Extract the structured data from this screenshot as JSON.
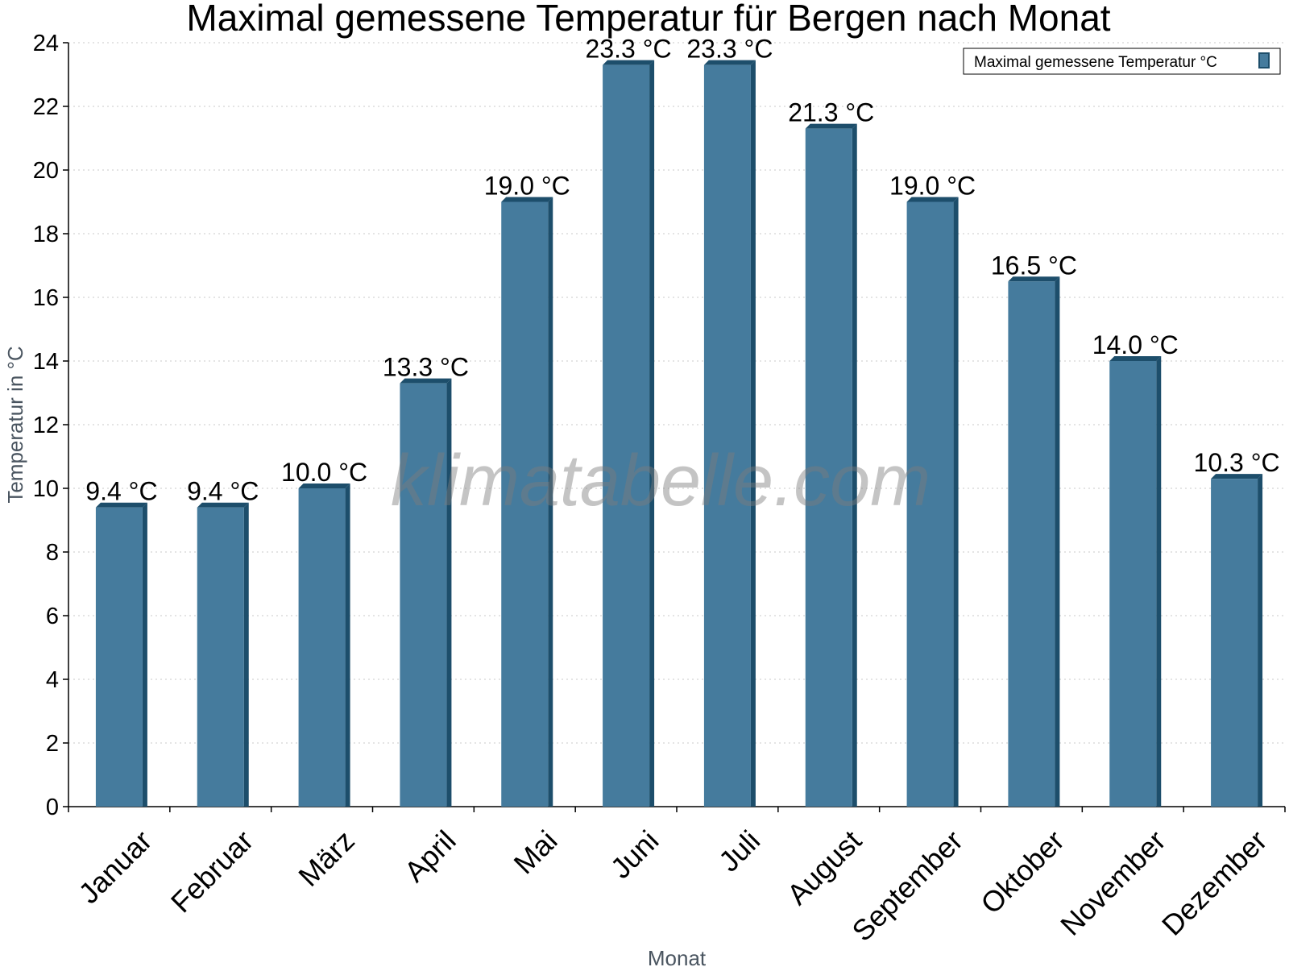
{
  "chart_data": {
    "type": "bar",
    "title": "Maximal gemessene Temperatur für Bergen nach Monat",
    "xlabel": "Monat",
    "ylabel": "Temperatur in °C",
    "ylim": [
      0,
      24
    ],
    "yticks": [
      0,
      2,
      4,
      6,
      8,
      10,
      12,
      14,
      16,
      18,
      20,
      22,
      24
    ],
    "grid": true,
    "legend_position": "top-right",
    "categories": [
      "Januar",
      "Februar",
      "März",
      "April",
      "Mai",
      "Juni",
      "Juli",
      "August",
      "September",
      "Oktober",
      "November",
      "Dezember"
    ],
    "series": [
      {
        "name": "Maximal gemessene Temperatur °C",
        "values": [
          9.4,
          9.4,
          10.0,
          13.3,
          19.0,
          23.3,
          23.3,
          21.3,
          19.0,
          16.5,
          14.0,
          10.3
        ],
        "labels": [
          "9.4 °C",
          "9.4 °C",
          "10.0 °C",
          "13.3 °C",
          "19.0 °C",
          "23.3 °C",
          "23.3 °C",
          "21.3 °C",
          "19.0 °C",
          "16.5 °C",
          "14.0 °C",
          "10.3 °C"
        ]
      }
    ],
    "colors": {
      "bar": "#457b9d",
      "bar_edge": "#1d4e6b",
      "grid": "#c8c8c8"
    }
  },
  "watermark": "klimatabelle.com"
}
